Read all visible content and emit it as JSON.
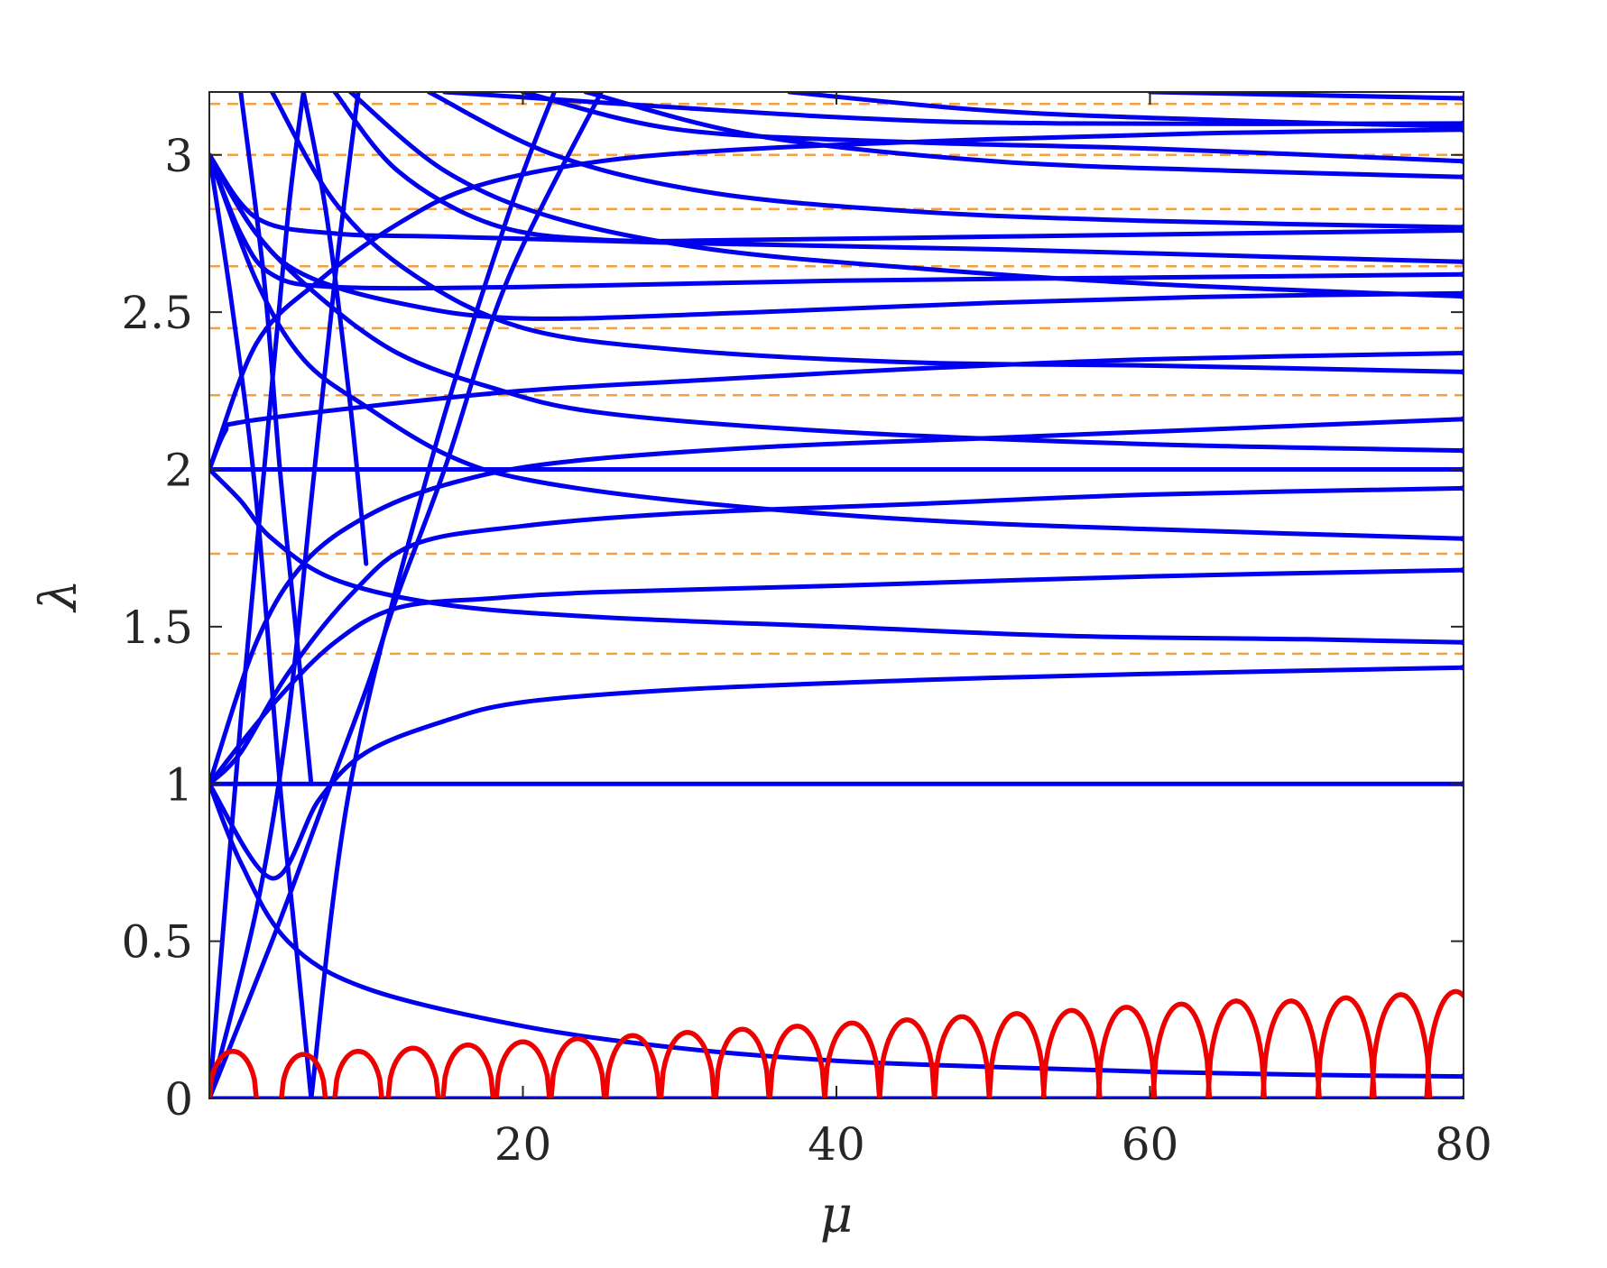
{
  "chart_data": {
    "type": "line",
    "title": "",
    "xlabel": "μ",
    "ylabel": "λ",
    "xlim": [
      0,
      80
    ],
    "ylim": [
      0,
      3.2
    ],
    "xticks": [
      20,
      40,
      60,
      80
    ],
    "xtick_labels": [
      "20",
      "40",
      "60",
      "80"
    ],
    "yticks": [
      0,
      0.5,
      1,
      1.5,
      2,
      2.5,
      3
    ],
    "ytick_labels": [
      "0",
      "0.5",
      "1",
      "1.5",
      "2",
      "2.5",
      "3"
    ],
    "grid": false,
    "legend": "none",
    "colors": {
      "real": "#0000ee",
      "complex": "#ee0000",
      "reference": "#f5a040",
      "axes": "#262626"
    },
    "reference_levels": [
      0,
      1,
      1.414,
      1.732,
      2,
      2.236,
      2.449,
      2.646,
      2.828,
      3,
      3.162
    ],
    "series": [
      {
        "color": "real",
        "points": [
          [
            0,
            1
          ],
          [
            20,
            1
          ],
          [
            40,
            1
          ],
          [
            60,
            1
          ],
          [
            80,
            1
          ]
        ]
      },
      {
        "color": "real",
        "points": [
          [
            0,
            2
          ],
          [
            20,
            2
          ],
          [
            40,
            2
          ],
          [
            60,
            2
          ],
          [
            80,
            2
          ]
        ]
      },
      {
        "color": "real",
        "points": [
          [
            0,
            0
          ],
          [
            20,
            0
          ],
          [
            40,
            0
          ],
          [
            60,
            0
          ],
          [
            80,
            0
          ]
        ]
      },
      {
        "color": "real",
        "points": [
          [
            0,
            1
          ],
          [
            2,
            0.75
          ],
          [
            5,
            0.5
          ],
          [
            10,
            0.35
          ],
          [
            20,
            0.23
          ],
          [
            30,
            0.16
          ],
          [
            40,
            0.12
          ],
          [
            50,
            0.1
          ],
          [
            60,
            0.085
          ],
          [
            70,
            0.075
          ],
          [
            80,
            0.07
          ]
        ]
      },
      {
        "color": "real",
        "points": [
          [
            0,
            2
          ],
          [
            2,
            1.9
          ],
          [
            4,
            1.78
          ],
          [
            8,
            1.65
          ],
          [
            15,
            1.57
          ],
          [
            25,
            1.53
          ],
          [
            40,
            1.5
          ],
          [
            55,
            1.47
          ],
          [
            70,
            1.46
          ],
          [
            80,
            1.45
          ]
        ]
      },
      {
        "color": "real",
        "points": [
          [
            0,
            1
          ],
          [
            4,
            0.7
          ],
          [
            7,
            0.95
          ],
          [
            10,
            1.1
          ],
          [
            15,
            1.2
          ],
          [
            20,
            1.26
          ],
          [
            30,
            1.3
          ],
          [
            45,
            1.33
          ],
          [
            60,
            1.35
          ],
          [
            80,
            1.37
          ]
        ]
      },
      {
        "color": "real",
        "points": [
          [
            0,
            1
          ],
          [
            4,
            1.25
          ],
          [
            8,
            1.45
          ],
          [
            12,
            1.56
          ],
          [
            18,
            1.59
          ],
          [
            25,
            1.61
          ],
          [
            40,
            1.63
          ],
          [
            60,
            1.66
          ],
          [
            80,
            1.68
          ]
        ]
      },
      {
        "color": "real",
        "points": [
          [
            0,
            1
          ],
          [
            2,
            1.1
          ],
          [
            5,
            1.35
          ],
          [
            9,
            1.6
          ],
          [
            13,
            1.76
          ],
          [
            20,
            1.82
          ],
          [
            30,
            1.86
          ],
          [
            45,
            1.89
          ],
          [
            60,
            1.92
          ],
          [
            80,
            1.94
          ]
        ]
      },
      {
        "color": "real",
        "points": [
          [
            0,
            3
          ],
          [
            3,
            2.6
          ],
          [
            6,
            2.35
          ],
          [
            10,
            2.2
          ],
          [
            15,
            2.05
          ],
          [
            20,
            1.97
          ],
          [
            30,
            1.9
          ],
          [
            45,
            1.84
          ],
          [
            60,
            1.81
          ],
          [
            80,
            1.78
          ]
        ]
      },
      {
        "color": "real",
        "points": [
          [
            0,
            1
          ],
          [
            3,
            1.45
          ],
          [
            6,
            1.7
          ],
          [
            10,
            1.85
          ],
          [
            15,
            1.95
          ],
          [
            22,
            2.02
          ],
          [
            35,
            2.07
          ],
          [
            50,
            2.1
          ],
          [
            65,
            2.13
          ],
          [
            80,
            2.16
          ]
        ]
      },
      {
        "color": "real",
        "points": [
          [
            0,
            3
          ],
          [
            3,
            2.75
          ],
          [
            7,
            2.55
          ],
          [
            12,
            2.37
          ],
          [
            18,
            2.26
          ],
          [
            25,
            2.18
          ],
          [
            40,
            2.12
          ],
          [
            60,
            2.08
          ],
          [
            80,
            2.06
          ]
        ]
      },
      {
        "color": "real",
        "points": [
          [
            0,
            2
          ],
          [
            1,
            2.12
          ],
          [
            2,
            2.15
          ],
          [
            10,
            2.2
          ],
          [
            20,
            2.25
          ],
          [
            30,
            2.28
          ],
          [
            45,
            2.32
          ],
          [
            60,
            2.35
          ],
          [
            80,
            2.37
          ]
        ]
      },
      {
        "color": "real",
        "points": [
          [
            0,
            2
          ],
          [
            3,
            2.4
          ],
          [
            7,
            2.6
          ],
          [
            12,
            2.78
          ],
          [
            17,
            2.9
          ],
          [
            25,
            2.98
          ],
          [
            35,
            3.02
          ],
          [
            50,
            3.05
          ],
          [
            65,
            3.07
          ],
          [
            80,
            3.08
          ]
        ]
      },
      {
        "color": "real",
        "points": [
          [
            0,
            3
          ],
          [
            3,
            2.75
          ],
          [
            6,
            2.62
          ],
          [
            12,
            2.53
          ],
          [
            20,
            2.48
          ],
          [
            35,
            2.5
          ],
          [
            50,
            2.53
          ],
          [
            65,
            2.55
          ],
          [
            80,
            2.56
          ]
        ]
      },
      {
        "color": "real",
        "points": [
          [
            0,
            3
          ],
          [
            2,
            2.75
          ],
          [
            4,
            2.62
          ],
          [
            8,
            2.58
          ],
          [
            20,
            2.58
          ],
          [
            40,
            2.6
          ],
          [
            60,
            2.61
          ],
          [
            80,
            2.62
          ]
        ]
      },
      {
        "color": "real",
        "points": [
          [
            0,
            3
          ],
          [
            3,
            2.8
          ],
          [
            8,
            2.75
          ],
          [
            15,
            2.74
          ],
          [
            30,
            2.72
          ],
          [
            50,
            2.7
          ],
          [
            65,
            2.68
          ],
          [
            80,
            2.66
          ]
        ]
      },
      {
        "color": "real",
        "points": [
          [
            8,
            3.2
          ],
          [
            12,
            2.95
          ],
          [
            18,
            2.78
          ],
          [
            25,
            2.73
          ],
          [
            35,
            2.73
          ],
          [
            50,
            2.74
          ],
          [
            65,
            2.75
          ],
          [
            80,
            2.76
          ]
        ]
      },
      {
        "color": "real",
        "points": [
          [
            14,
            3.2
          ],
          [
            22,
            3
          ],
          [
            32,
            2.88
          ],
          [
            45,
            2.82
          ],
          [
            60,
            2.79
          ],
          [
            80,
            2.77
          ]
        ]
      },
      {
        "color": "real",
        "points": [
          [
            4,
            3.2
          ],
          [
            8,
            2.85
          ],
          [
            13,
            2.62
          ],
          [
            20,
            2.45
          ],
          [
            30,
            2.38
          ],
          [
            45,
            2.34
          ],
          [
            60,
            2.33
          ],
          [
            80,
            2.31
          ]
        ]
      },
      {
        "color": "real",
        "points": [
          [
            9,
            3.2
          ],
          [
            15,
            2.95
          ],
          [
            22,
            2.8
          ],
          [
            32,
            2.7
          ],
          [
            45,
            2.64
          ],
          [
            60,
            2.59
          ],
          [
            80,
            2.55
          ]
        ]
      },
      {
        "color": "real",
        "points": [
          [
            20,
            3.2
          ],
          [
            30,
            3.08
          ],
          [
            45,
            3.04
          ],
          [
            60,
            3.02
          ],
          [
            80,
            2.98
          ]
        ]
      },
      {
        "color": "real",
        "points": [
          [
            24,
            3.2
          ],
          [
            35,
            3.06
          ],
          [
            50,
            2.98
          ],
          [
            65,
            2.95
          ],
          [
            80,
            2.93
          ]
        ]
      },
      {
        "color": "real",
        "points": [
          [
            37,
            3.2
          ],
          [
            50,
            3.14
          ],
          [
            65,
            3.11
          ],
          [
            80,
            3.09
          ]
        ]
      },
      {
        "color": "real",
        "points": [
          [
            15,
            3.2
          ],
          [
            40,
            3.12
          ],
          [
            55,
            3.1
          ],
          [
            80,
            3.1
          ]
        ]
      },
      {
        "color": "real",
        "points": [
          [
            60,
            3.2
          ],
          [
            80,
            3.18
          ]
        ]
      },
      {
        "color": "real",
        "points": [
          [
            0,
            3
          ],
          [
            1.5,
            2.5
          ],
          [
            3,
            1.9
          ],
          [
            4.5,
            1
          ],
          [
            5.5,
            0.5
          ],
          [
            6.5,
            0
          ]
        ]
      },
      {
        "color": "real",
        "points": [
          [
            6.5,
            0
          ],
          [
            9,
            1
          ],
          [
            14,
            2
          ],
          [
            19,
            2.8
          ],
          [
            22,
            3.2
          ]
        ]
      },
      {
        "color": "real",
        "points": [
          [
            0,
            0
          ],
          [
            2,
            1.2
          ],
          [
            3.5,
            2
          ],
          [
            5,
            2.8
          ],
          [
            6,
            3.2
          ]
        ]
      },
      {
        "color": "real",
        "points": [
          [
            2,
            3.2
          ],
          [
            3.5,
            2.6
          ],
          [
            4.5,
            2
          ],
          [
            5.5,
            1.5
          ],
          [
            6.5,
            1
          ]
        ]
      },
      {
        "color": "real",
        "points": [
          [
            0,
            0
          ],
          [
            4,
            0.5
          ],
          [
            7,
            0.9
          ],
          [
            10,
            1.3
          ],
          [
            12,
            1.6
          ],
          [
            15,
            2
          ],
          [
            19,
            2.6
          ],
          [
            25,
            3.2
          ]
        ]
      },
      {
        "color": "real",
        "points": [
          [
            0,
            0
          ],
          [
            3,
            0.6
          ],
          [
            5,
            1.2
          ],
          [
            6.5,
            1.9
          ],
          [
            8,
            2.6
          ],
          [
            9.5,
            3.2
          ]
        ]
      },
      {
        "color": "real",
        "points": [
          [
            6,
            3.2
          ],
          [
            7.5,
            2.8
          ],
          [
            9,
            2.2
          ],
          [
            10,
            1.7
          ]
        ]
      }
    ],
    "complex_arcs": [
      {
        "center": 1.5,
        "halfwidth": 1.5,
        "height": 0.15
      },
      {
        "center": 6,
        "halfwidth": 1.4,
        "height": 0.14
      },
      {
        "center": 9.5,
        "halfwidth": 1.5,
        "height": 0.15
      },
      {
        "center": 13,
        "halfwidth": 1.6,
        "height": 0.16
      },
      {
        "center": 16.5,
        "halfwidth": 1.6,
        "height": 0.17
      },
      {
        "center": 20,
        "halfwidth": 1.7,
        "height": 0.18
      },
      {
        "center": 23.5,
        "halfwidth": 1.7,
        "height": 0.19
      },
      {
        "center": 27,
        "halfwidth": 1.7,
        "height": 0.2
      },
      {
        "center": 30.5,
        "halfwidth": 1.7,
        "height": 0.21
      },
      {
        "center": 34,
        "halfwidth": 1.7,
        "height": 0.22
      },
      {
        "center": 37.5,
        "halfwidth": 1.75,
        "height": 0.23
      },
      {
        "center": 41,
        "halfwidth": 1.75,
        "height": 0.24
      },
      {
        "center": 44.5,
        "halfwidth": 1.75,
        "height": 0.25
      },
      {
        "center": 48,
        "halfwidth": 1.75,
        "height": 0.26
      },
      {
        "center": 51.5,
        "halfwidth": 1.75,
        "height": 0.27
      },
      {
        "center": 55,
        "halfwidth": 1.8,
        "height": 0.28
      },
      {
        "center": 58.5,
        "halfwidth": 1.8,
        "height": 0.29
      },
      {
        "center": 62,
        "halfwidth": 1.8,
        "height": 0.3
      },
      {
        "center": 65.5,
        "halfwidth": 1.8,
        "height": 0.31
      },
      {
        "center": 69,
        "halfwidth": 1.8,
        "height": 0.31
      },
      {
        "center": 72.5,
        "halfwidth": 1.8,
        "height": 0.32
      },
      {
        "center": 76,
        "halfwidth": 1.85,
        "height": 0.33
      },
      {
        "center": 79.5,
        "halfwidth": 1.85,
        "height": 0.34
      }
    ]
  }
}
